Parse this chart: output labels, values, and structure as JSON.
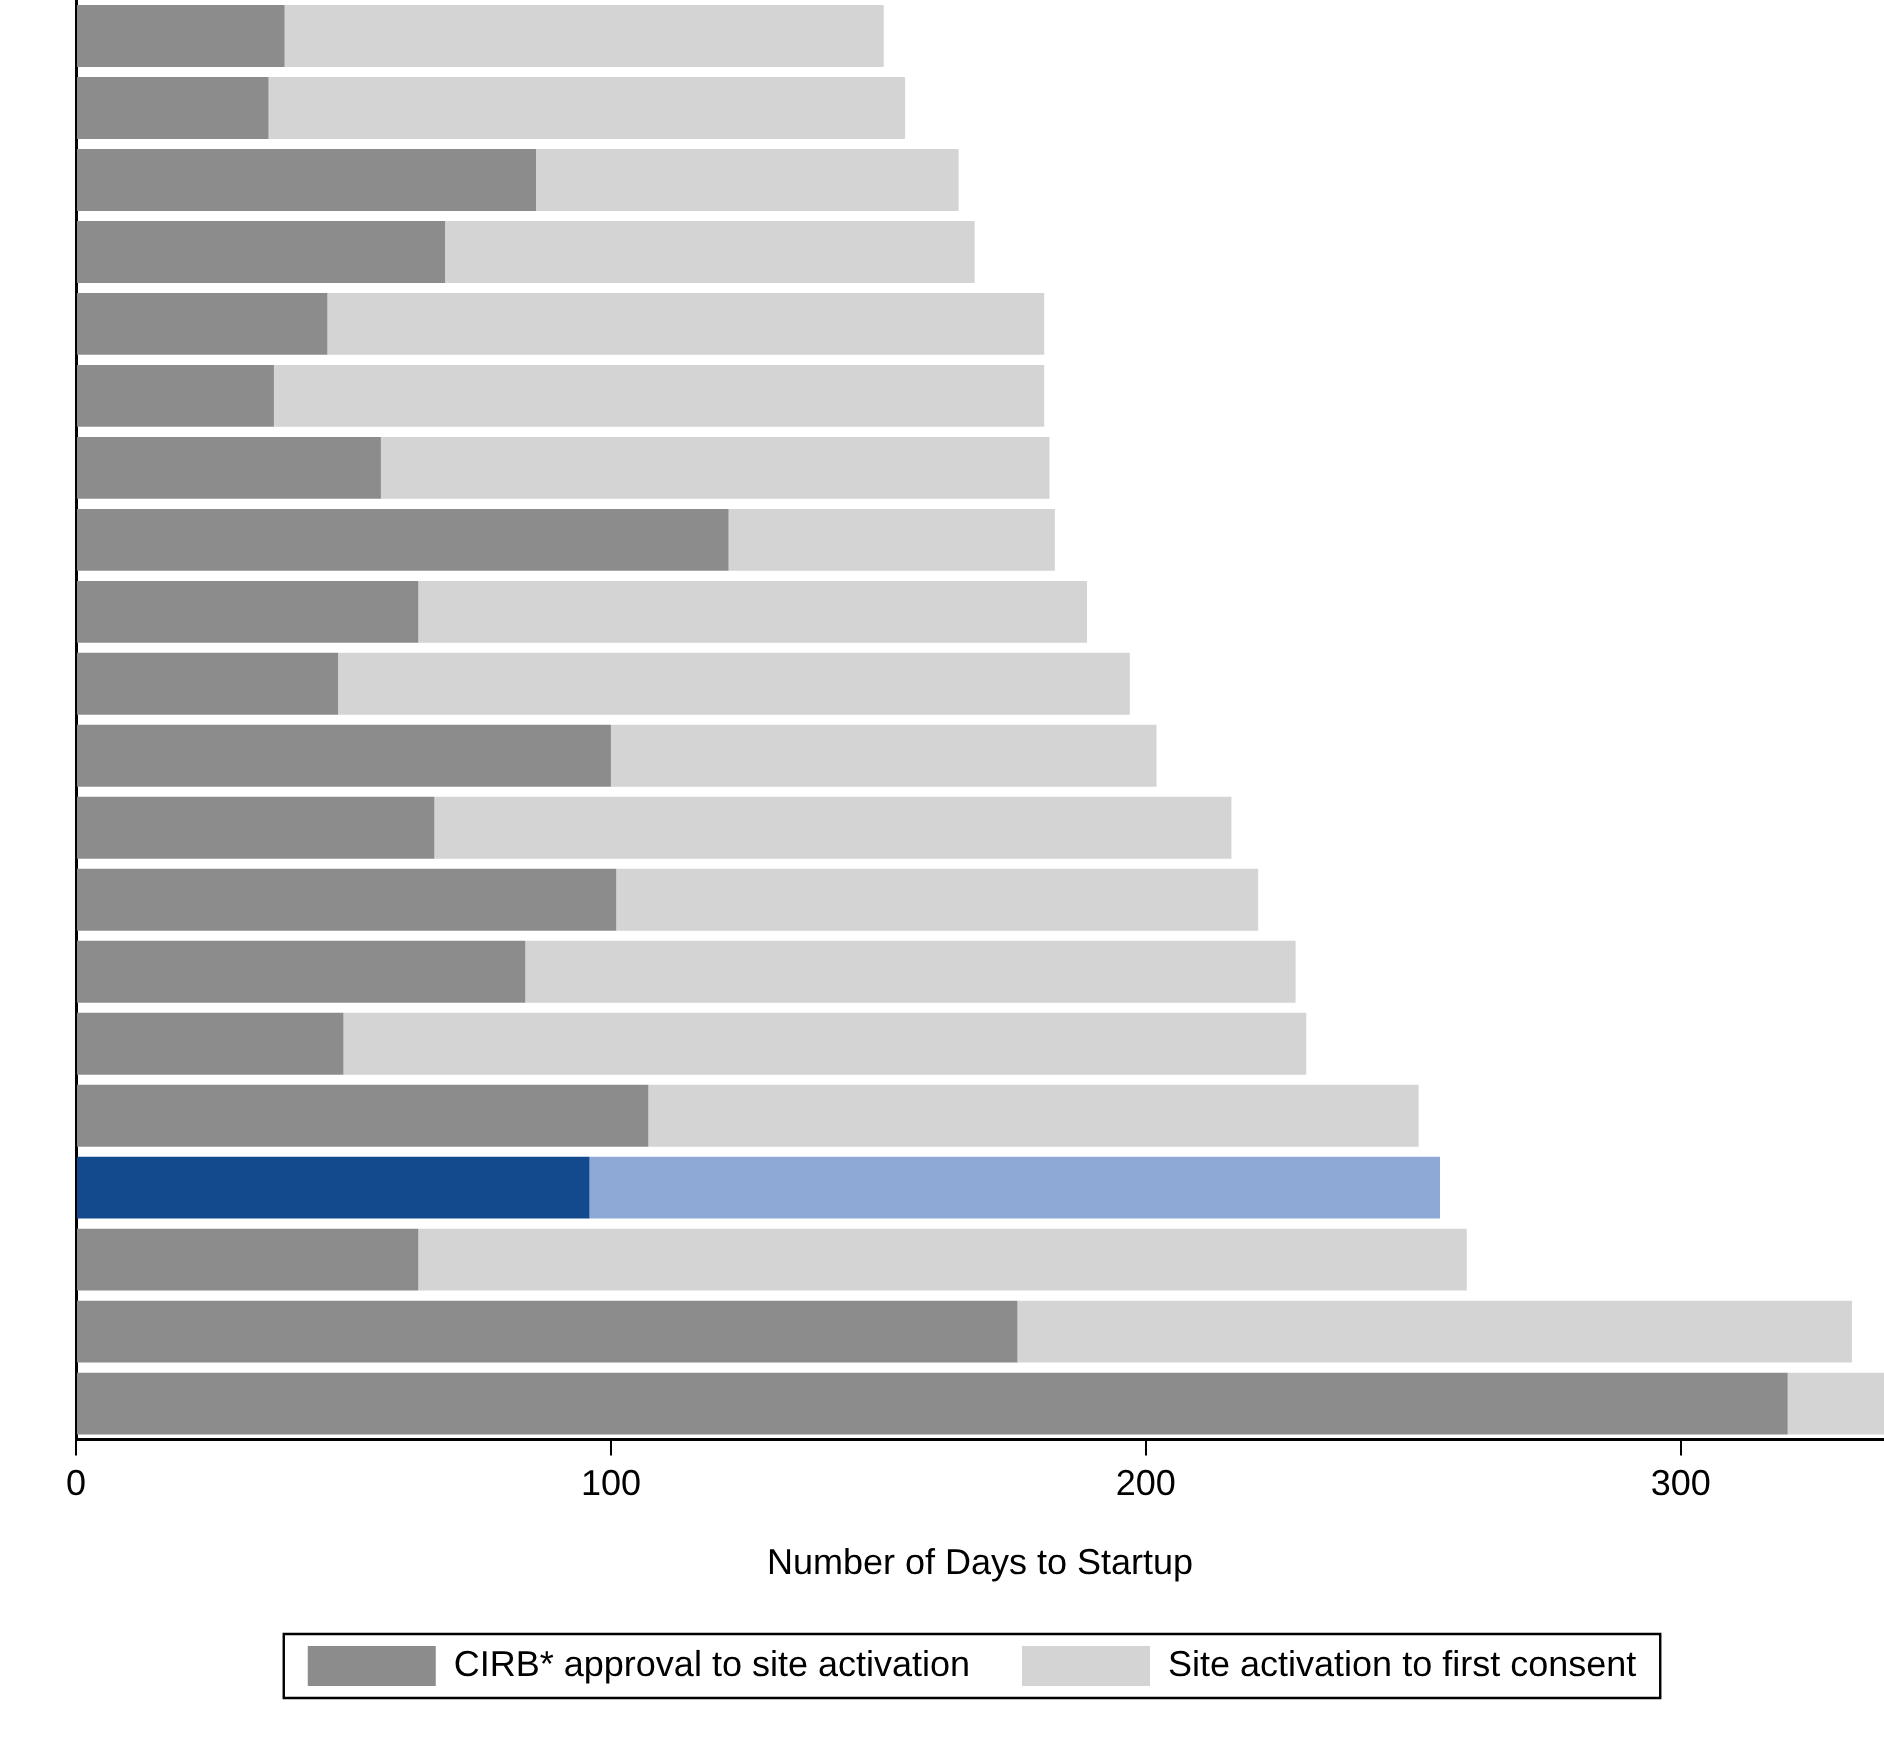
{
  "chart_data": {
    "type": "bar",
    "orientation": "horizontal",
    "stacked": true,
    "xlabel": "Number of Days to Startup",
    "categories": [
      null,
      null,
      null,
      null,
      null,
      null,
      null,
      null,
      null,
      null,
      null,
      null,
      null,
      null,
      null,
      null,
      null,
      null,
      null,
      null
    ],
    "series": [
      {
        "name": "CIRB* approval to site activation",
        "color": "#8c8c8c",
        "colors": [
          "#8c8c8c",
          "#8c8c8c",
          "#8c8c8c",
          "#8c8c8c",
          "#8c8c8c",
          "#8c8c8c",
          "#8c8c8c",
          "#8c8c8c",
          "#8c8c8c",
          "#8c8c8c",
          "#8c8c8c",
          "#8c8c8c",
          "#8c8c8c",
          "#8c8c8c",
          "#8c8c8c",
          "#8c8c8c",
          "#134a8e",
          "#8c8c8c",
          "#8c8c8c",
          "#8c8c8c"
        ],
        "values": [
          39,
          36,
          86,
          69,
          47,
          37,
          57,
          122,
          64,
          49,
          100,
          67,
          101,
          84,
          50,
          107,
          96,
          64,
          176,
          320
        ]
      },
      {
        "name": "Site activation to first consent",
        "color": "#d4d4d4",
        "colors": [
          "#d4d4d4",
          "#d4d4d4",
          "#d4d4d4",
          "#d4d4d4",
          "#d4d4d4",
          "#d4d4d4",
          "#d4d4d4",
          "#d4d4d4",
          "#d4d4d4",
          "#d4d4d4",
          "#d4d4d4",
          "#d4d4d4",
          "#d4d4d4",
          "#d4d4d4",
          "#d4d4d4",
          "#d4d4d4",
          "#8fa9d6",
          "#d4d4d4",
          "#d4d4d4",
          "#d4d4d4"
        ],
        "values": [
          112,
          119,
          79,
          99,
          134,
          144,
          125,
          61,
          125,
          148,
          102,
          149,
          120,
          144,
          180,
          144,
          159,
          196,
          156,
          18
        ]
      }
    ],
    "xlim": [
      0,
      338
    ],
    "xticks": [
      0,
      100,
      200,
      300
    ],
    "grid": false,
    "legend": "bottom"
  }
}
